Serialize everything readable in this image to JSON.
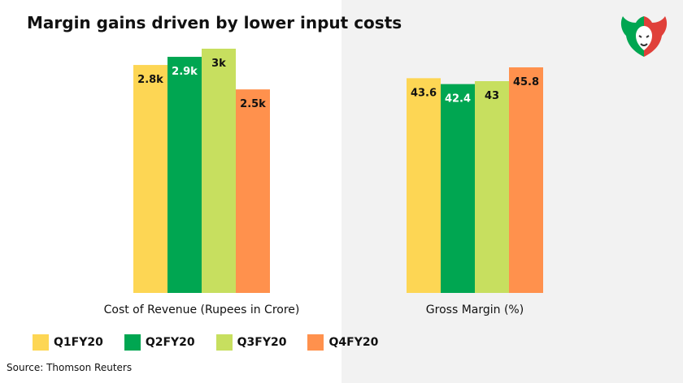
{
  "title": "Margin gains driven by lower input costs",
  "source": "Source: Thomson Reuters",
  "logo": "bull-bear-logo",
  "colors": {
    "q1": "#FDD654",
    "q2": "#00A651",
    "q3": "#C7DF5F",
    "q4": "#FF914D",
    "right_panel_bg": "#f2f2f2"
  },
  "legend": [
    {
      "label": "Q1FY20",
      "color": "#FDD654"
    },
    {
      "label": "Q2FY20",
      "color": "#00A651"
    },
    {
      "label": "Q3FY20",
      "color": "#C7DF5F"
    },
    {
      "label": "Q4FY20",
      "color": "#FF914D"
    }
  ],
  "chart_data": [
    {
      "type": "bar",
      "title": "",
      "xlabel": "Cost of Revenue (Rupees in Crore)",
      "ylabel": "",
      "categories": [
        "Q1FY20",
        "Q2FY20",
        "Q3FY20",
        "Q4FY20"
      ],
      "values": [
        2800,
        2900,
        3000,
        2500
      ],
      "data_labels": [
        "2.8k",
        "2.9k",
        "3k",
        "2.5k"
      ],
      "label_colors": [
        "#111111",
        "#ffffff",
        "#111111",
        "#111111"
      ],
      "ylim": [
        0,
        3000
      ],
      "grid": false
    },
    {
      "type": "bar",
      "title": "",
      "xlabel": "Gross Margin (%)",
      "ylabel": "",
      "categories": [
        "Q1FY20",
        "Q2FY20",
        "Q3FY20",
        "Q4FY20"
      ],
      "values": [
        43.6,
        42.4,
        43,
        45.8
      ],
      "data_labels": [
        "43.6",
        "42.4",
        "43",
        "45.8"
      ],
      "label_colors": [
        "#111111",
        "#ffffff",
        "#111111",
        "#111111"
      ],
      "ylim": [
        0,
        45.8
      ],
      "grid": false
    }
  ]
}
